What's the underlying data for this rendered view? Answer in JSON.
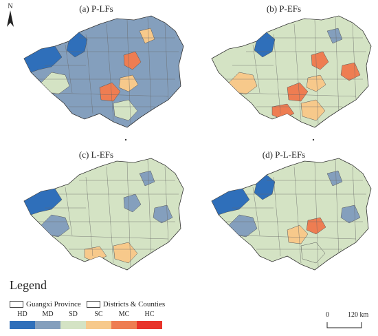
{
  "panels": [
    {
      "title": "(a) P-LFs",
      "base": "MD",
      "regions": [
        {
          "cls": "HD",
          "shape": "west"
        },
        {
          "cls": "HD",
          "shape": "nw"
        },
        {
          "cls": "SD",
          "shape": "midw"
        },
        {
          "cls": "MC",
          "shape": "c1"
        },
        {
          "cls": "MC",
          "shape": "c2"
        },
        {
          "cls": "SC",
          "shape": "c3"
        },
        {
          "cls": "SD",
          "shape": "s1"
        },
        {
          "cls": "SC",
          "shape": "n1"
        }
      ]
    },
    {
      "title": "(b) P-EFs",
      "base": "SD",
      "regions": [
        {
          "cls": "HD",
          "shape": "nw"
        },
        {
          "cls": "MC",
          "shape": "c1"
        },
        {
          "cls": "MC",
          "shape": "c2"
        },
        {
          "cls": "MC",
          "shape": "s2"
        },
        {
          "cls": "SC",
          "shape": "c3"
        },
        {
          "cls": "SC",
          "shape": "s1"
        },
        {
          "cls": "MD",
          "shape": "n1"
        },
        {
          "cls": "SC",
          "shape": "midw"
        },
        {
          "cls": "MC",
          "shape": "e1"
        }
      ]
    },
    {
      "title": "(c) L-EFs",
      "base": "SD",
      "regions": [
        {
          "cls": "HD",
          "shape": "west"
        },
        {
          "cls": "MD",
          "shape": "midw"
        },
        {
          "cls": "MD",
          "shape": "n1"
        },
        {
          "cls": "MD",
          "shape": "c1"
        },
        {
          "cls": "SC",
          "shape": "s1"
        },
        {
          "cls": "SC",
          "shape": "s2"
        },
        {
          "cls": "MD",
          "shape": "e1"
        }
      ]
    },
    {
      "title": "(d) P-L-EFs",
      "base": "SD",
      "regions": [
        {
          "cls": "HD",
          "shape": "west"
        },
        {
          "cls": "HD",
          "shape": "nw"
        },
        {
          "cls": "MD",
          "shape": "midw"
        },
        {
          "cls": "MD",
          "shape": "n1"
        },
        {
          "cls": "SC",
          "shape": "c2"
        },
        {
          "cls": "MC",
          "shape": "c3"
        },
        {
          "cls": "MD",
          "shape": "e1"
        },
        {
          "cls": "SD",
          "shape": "s1"
        }
      ]
    }
  ],
  "north_label": "N",
  "legend": {
    "title": "Legend",
    "province_label": "Guangxi Province",
    "districts_label": "Districts & Counties",
    "classes": [
      {
        "code": "HD",
        "color": "#2f6fba"
      },
      {
        "code": "MD",
        "color": "#849fbd"
      },
      {
        "code": "SD",
        "color": "#d4e3c4"
      },
      {
        "code": "SC",
        "color": "#f7c98b"
      },
      {
        "code": "MC",
        "color": "#ee7d52"
      },
      {
        "code": "HC",
        "color": "#e8332a"
      }
    ]
  },
  "scale_bar": {
    "start": "0",
    "end": "120 km"
  }
}
